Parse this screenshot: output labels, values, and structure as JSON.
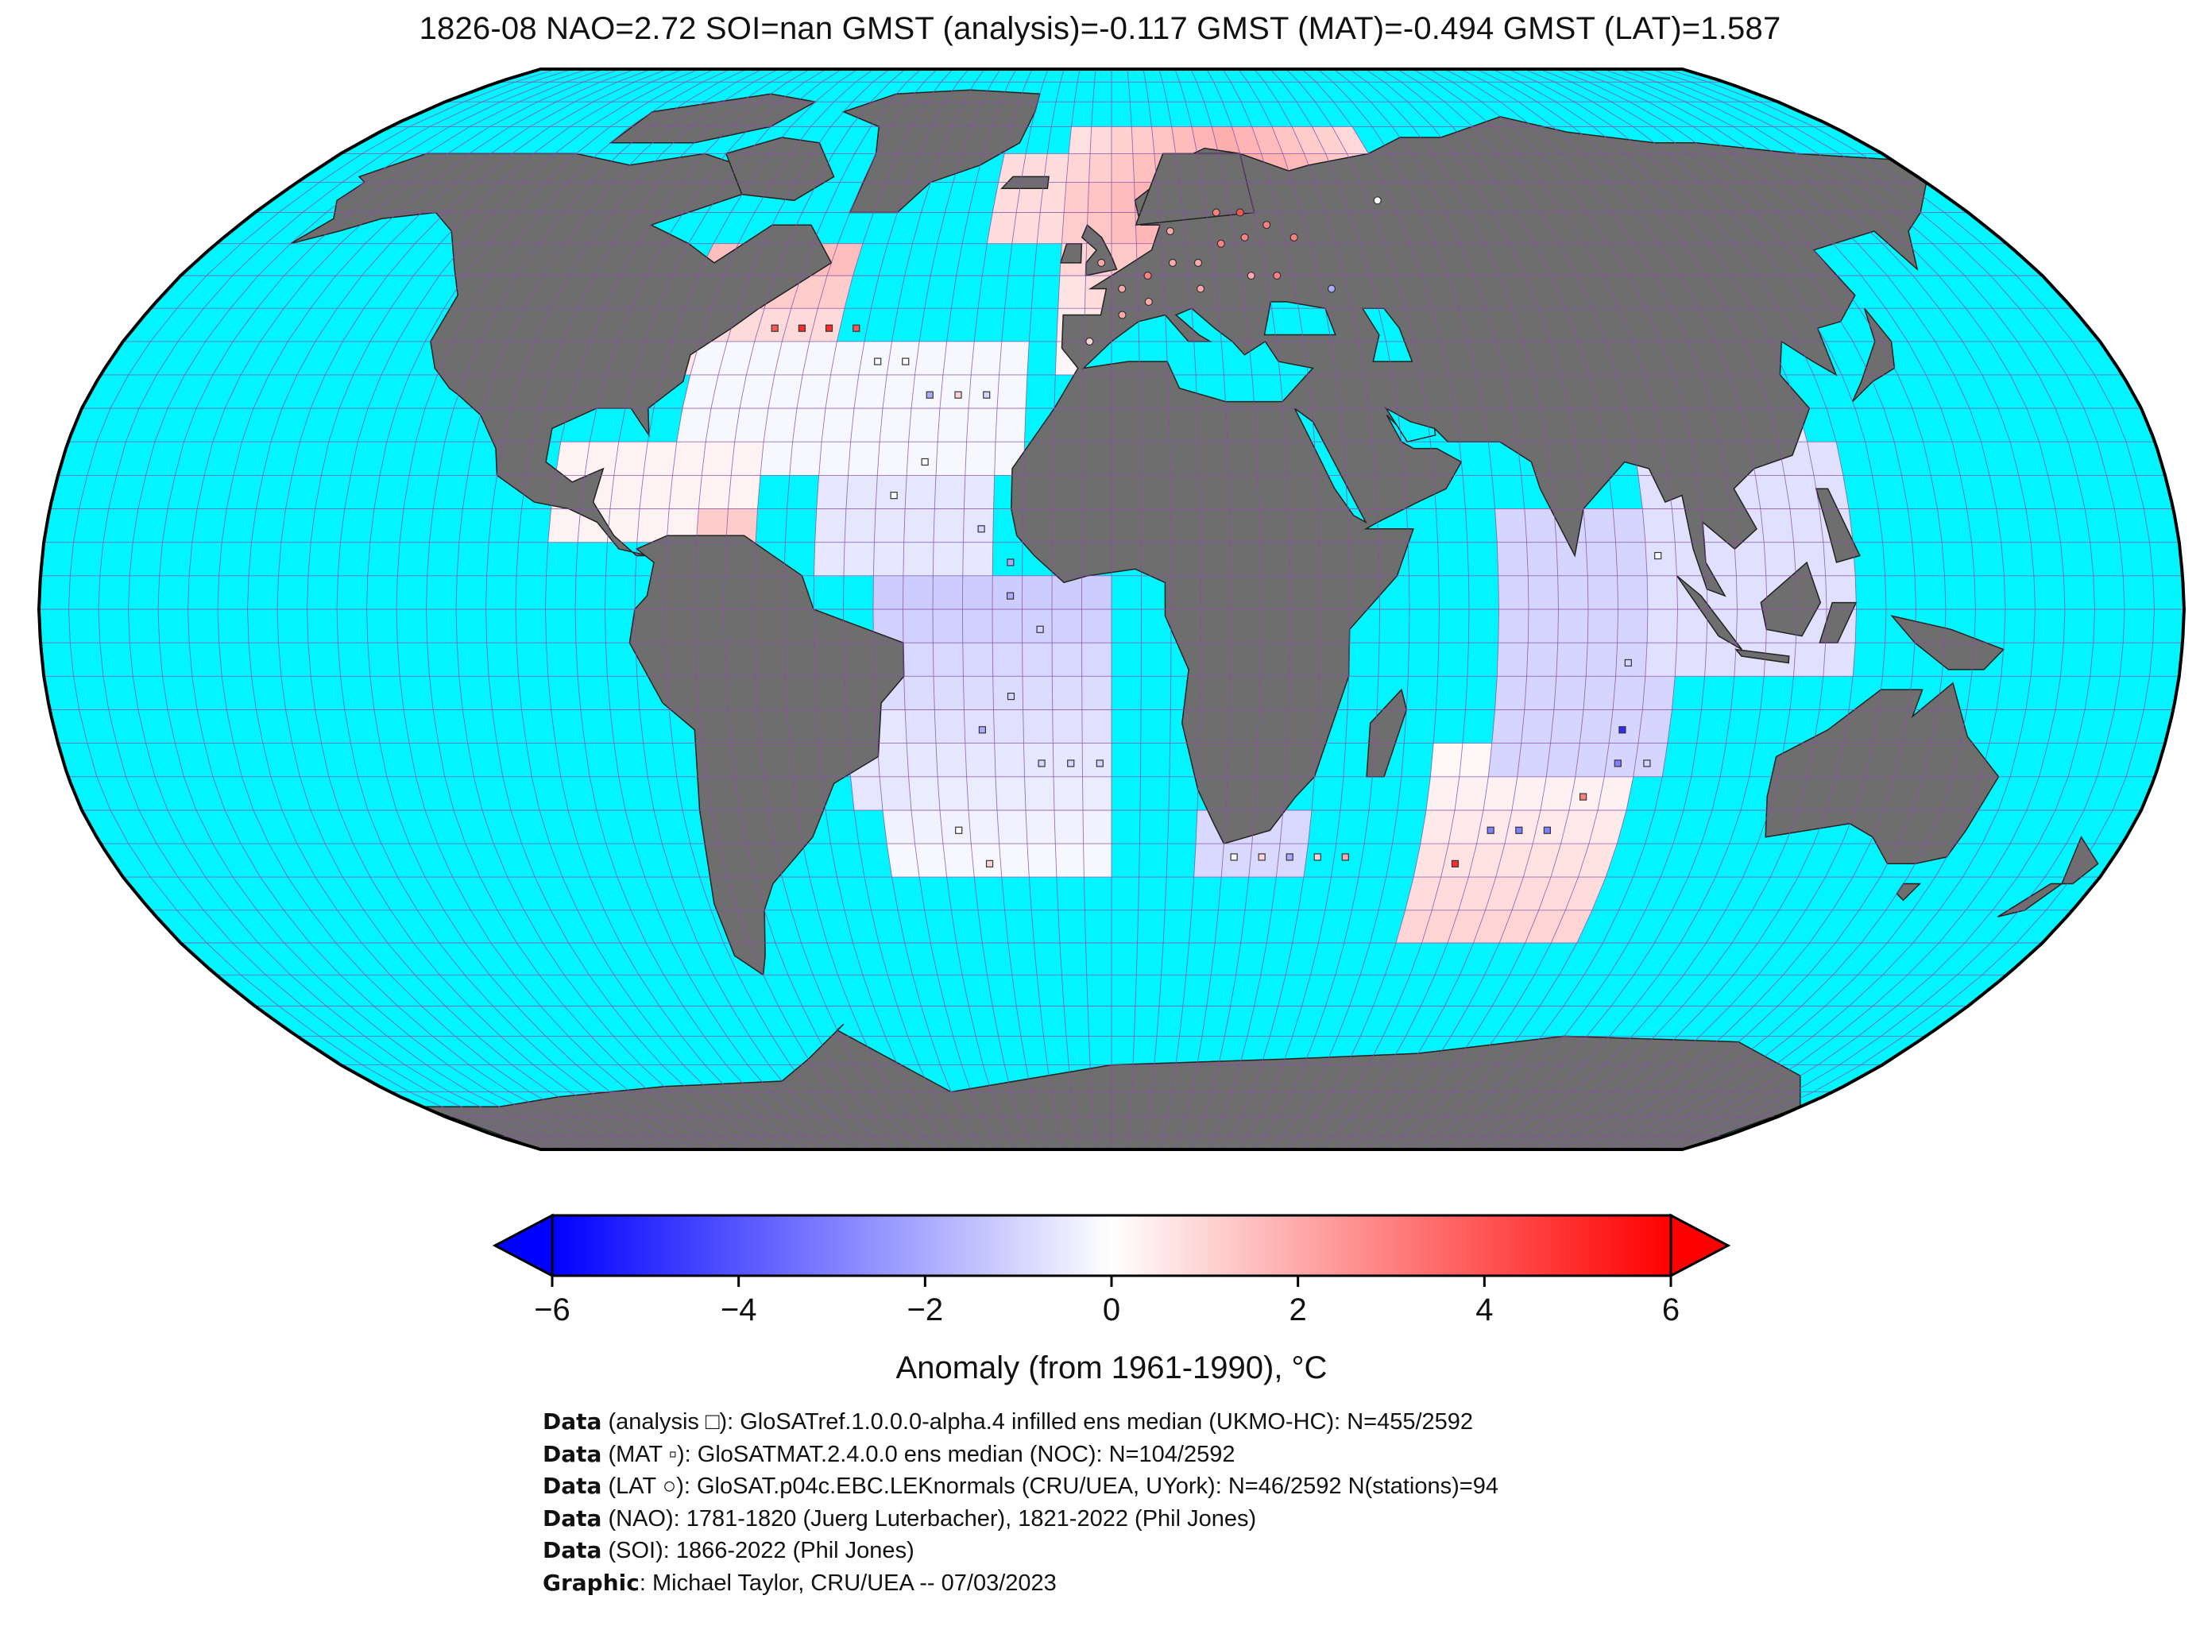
{
  "title": "1826-08 NAO=2.72 SOI=nan GMST (analysis)=-0.117 GMST (MAT)=-0.494 GMST (LAT)=1.587",
  "map": {
    "projection": "Robinson",
    "ocean_color": "#00f5ff",
    "land_color": "#6e6e6e",
    "grid_color": "#8a4fa8",
    "colormap": "bwr",
    "colormap_stops": [
      "#0000ff",
      "#ffffff",
      "#ff0000"
    ]
  },
  "colorbar": {
    "label": "Anomaly (from 1961-1990), °C",
    "ticks": [
      "−6",
      "−4",
      "−2",
      "0",
      "2",
      "4",
      "6"
    ],
    "vmin": -6,
    "vmax": 6,
    "extend": "both"
  },
  "credits": [
    {
      "label": "Data",
      "text": " (analysis □): GloSATref.1.0.0.0-alpha.4 infilled ens median (UKMO-HC): N=455/2592"
    },
    {
      "label": "Data",
      "text": " (MAT ▫): GloSATMAT.2.4.0.0 ens median (NOC): N=104/2592"
    },
    {
      "label": "Data",
      "text": " (LAT ○): GloSAT.p04c.EBC.LEKnormals (CRU/UEA, UYork): N=46/2592 N(stations)=94"
    },
    {
      "label": "Data",
      "text": " (NAO): 1781-1820 (Juerg Luterbacher), 1821-2022 (Phil Jones)"
    },
    {
      "label": "Data",
      "text": " (SOI): 1866-2022 (Phil Jones)"
    },
    {
      "label": "Graphic",
      "text": ": Michael Taylor, CRU/UEA -- 07/03/2023"
    }
  ]
}
